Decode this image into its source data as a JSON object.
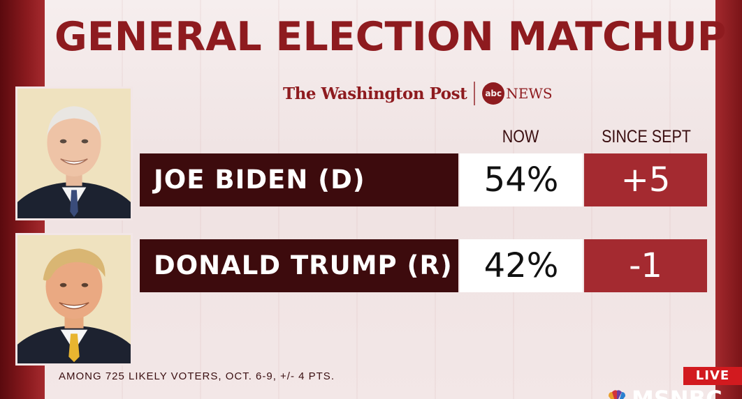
{
  "title": "GENERAL ELECTION MATCHUP",
  "source": {
    "publisher": "The Washington Post",
    "partner_logo": "abc",
    "partner_name": "NEWS"
  },
  "columns": {
    "now": "NOW",
    "since": "SINCE SEPT"
  },
  "candidates": [
    {
      "name": "JOE BIDEN (D)",
      "now": "54%",
      "since": "+5",
      "photo": "candidate-portrait-biden"
    },
    {
      "name": "DONALD TRUMP (R)",
      "now": "42%",
      "since": "-1",
      "photo": "candidate-portrait-trump"
    }
  ],
  "footnote": "AMONG 725 LIKELY VOTERS, OCT. 6-9, +/- 4 PTS.",
  "broadcast": {
    "live": "LIVE",
    "network": "MSNBC"
  },
  "colors": {
    "brand_red": "#8e1b1f",
    "name_bar": "#3d0b0d",
    "change_box": "#a42a30",
    "live_red": "#d21a1f"
  }
}
